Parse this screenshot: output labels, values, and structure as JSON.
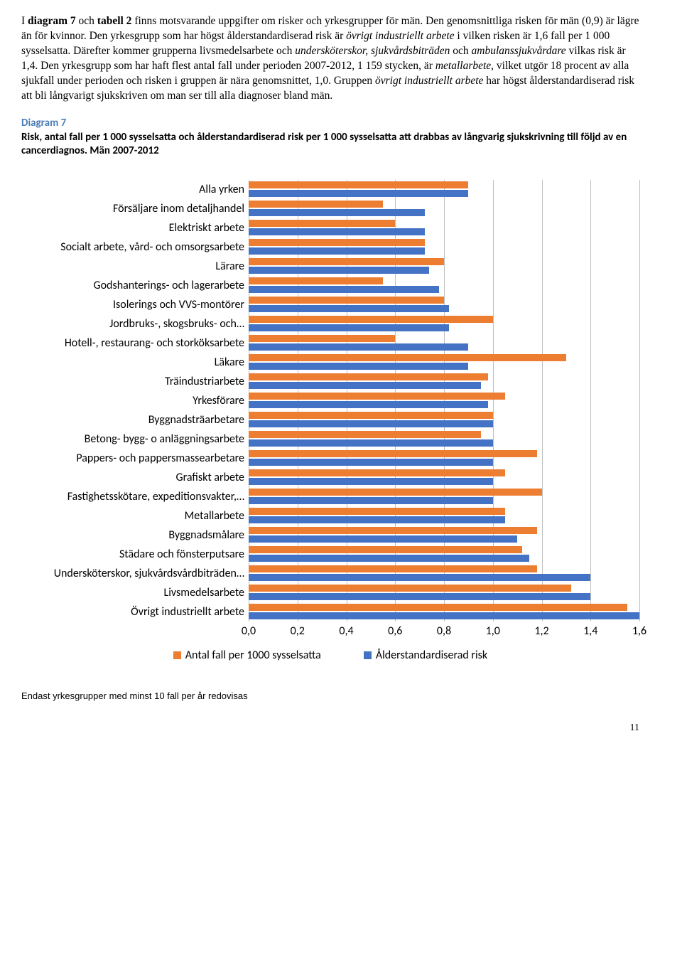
{
  "body_html": "I <strong>diagram 7</strong> och <strong>tabell 2</strong> finns motsvarande uppgifter om risker och yrkesgrupper för män. Den genomsnittliga risken för män (0,9) är lägre än för kvinnor. Den yrkesgrupp som har högst ålderstandardiserad risk är <em>övrigt industriellt arbete</em> i vilken risken är 1,6 fall per 1 000 sysselsatta. Därefter kommer grupperna livsmedelsarbete och <em>undersköterskor, sjukvårdsbiträden</em> och <em>ambulanssjukvårdare</em> vilkas risk är 1,4. Den yrkesgrupp som har haft flest antal fall under perioden 2007-2012, 1 159 stycken, är <em>metallarbete</em>, vilket utgör 18 procent av alla sjukfall under perioden och risken i gruppen är nära genomsnittet, 1,0. Gruppen <em>övrigt industriellt arbete</em> har högst ålderstandardiserad risk att bli långvarigt sjukskriven om man ser till alla diagnoser bland män.",
  "diagram_label": "Diagram 7",
  "diagram_caption": "Risk, antal fall per 1 000 sysselsatta och ålderstandardiserad risk per 1 000 sysselsatta att drabbas av långvarig sjukskrivning till följd av en cancerdiagnos. Män 2007-2012",
  "chart": {
    "type": "bar-horizontal-grouped",
    "xmax": 1.6,
    "xticks": [
      0.0,
      0.2,
      0.4,
      0.6,
      0.8,
      1.0,
      1.2,
      1.4,
      1.6
    ],
    "xtick_labels": [
      "0,0",
      "0,2",
      "0,4",
      "0,6",
      "0,8",
      "1,0",
      "1,2",
      "1,4",
      "1,6"
    ],
    "grid_color": "#bfbfbf",
    "series": [
      {
        "name": "Antal fall per 1000 sysselsatta",
        "color": "#ed7d31"
      },
      {
        "name": "Ålderstandardiserad risk",
        "color": "#4472c4"
      }
    ],
    "categories": [
      {
        "label": "Alla yrken",
        "orange": 0.9,
        "blue": 0.9
      },
      {
        "label": "Försäljare inom detaljhandel",
        "orange": 0.55,
        "blue": 0.72
      },
      {
        "label": "Elektriskt arbete",
        "orange": 0.6,
        "blue": 0.72
      },
      {
        "label": "Socialt arbete, vård- och omsorgsarbete",
        "orange": 0.72,
        "blue": 0.72
      },
      {
        "label": "Lärare",
        "orange": 0.8,
        "blue": 0.74
      },
      {
        "label": "Godshanterings- och lagerarbete",
        "orange": 0.55,
        "blue": 0.78
      },
      {
        "label": "Isolerings och VVS-montörer",
        "orange": 0.8,
        "blue": 0.82
      },
      {
        "label": "Jordbruks-, skogsbruks- och…",
        "orange": 1.0,
        "blue": 0.82
      },
      {
        "label": "Hotell-, restaurang- och storköksarbete",
        "orange": 0.6,
        "blue": 0.9
      },
      {
        "label": "Läkare",
        "orange": 1.3,
        "blue": 0.9
      },
      {
        "label": "Träindustriarbete",
        "orange": 0.98,
        "blue": 0.95
      },
      {
        "label": "Yrkesförare",
        "orange": 1.05,
        "blue": 0.98
      },
      {
        "label": "Byggnadsträarbetare",
        "orange": 1.0,
        "blue": 1.0
      },
      {
        "label": "Betong- bygg- o anläggningsarbete",
        "orange": 0.95,
        "blue": 1.0
      },
      {
        "label": "Pappers- och pappersmassearbetare",
        "orange": 1.18,
        "blue": 1.0
      },
      {
        "label": "Grafiskt arbete",
        "orange": 1.05,
        "blue": 1.0
      },
      {
        "label": "Fastighetsskötare, expeditionsvakter,…",
        "orange": 1.2,
        "blue": 1.0
      },
      {
        "label": "Metallarbete",
        "orange": 1.05,
        "blue": 1.05
      },
      {
        "label": "Byggnadsmålare",
        "orange": 1.18,
        "blue": 1.1
      },
      {
        "label": "Städare och fönsterputsare",
        "orange": 1.12,
        "blue": 1.15
      },
      {
        "label": "Undersköterskor, sjukvårdsvårdbiträden…",
        "orange": 1.18,
        "blue": 1.4
      },
      {
        "label": "Livsmedelsarbete",
        "orange": 1.32,
        "blue": 1.4
      },
      {
        "label": "Övrigt industriellt arbete",
        "orange": 1.55,
        "blue": 1.6
      }
    ]
  },
  "legend": {
    "item1": "Antal fall per 1000 sysselsatta",
    "item2": "Ålderstandardiserad risk"
  },
  "footnote": "Endast yrkesgrupper med minst 10 fall per år redovisas",
  "page_number": "11"
}
